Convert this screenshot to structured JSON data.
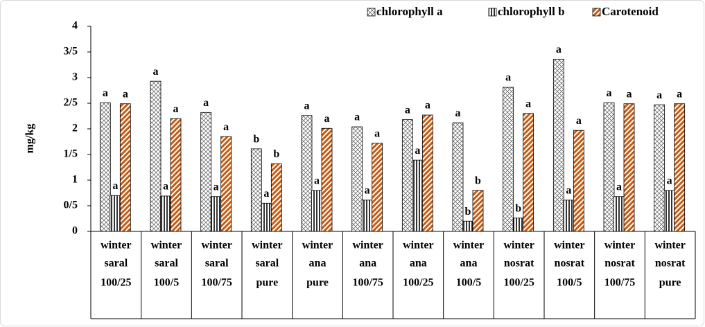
{
  "chart_data": {
    "type": "bar",
    "y_label": "mg/kg",
    "categories": [
      [
        "winter",
        "saral",
        "100/25"
      ],
      [
        "winter",
        "saral",
        "100/5"
      ],
      [
        "winter",
        "saral",
        "100/75"
      ],
      [
        "winter",
        "saral",
        "pure"
      ],
      [
        "winter",
        "ana",
        "pure"
      ],
      [
        "winter",
        "ana",
        "100/75"
      ],
      [
        "winter",
        "ana",
        "100/25"
      ],
      [
        "winter",
        "ana",
        "100/5"
      ],
      [
        "winter",
        "nosrat",
        "100/25"
      ],
      [
        "winter",
        "nosrat",
        "100/5"
      ],
      [
        "winter",
        "nosrat",
        "100/75"
      ],
      [
        "winter",
        "nosrat",
        "pure"
      ]
    ],
    "series": [
      {
        "name": "chlorophyll a",
        "color": "#000000",
        "values": [
          2.51,
          2.93,
          2.32,
          1.61,
          2.26,
          2.04,
          2.18,
          2.12,
          2.81,
          3.36,
          2.51,
          2.47
        ],
        "labels": [
          "a",
          "a",
          "a",
          "b",
          "a",
          "a",
          "a",
          "a",
          "a",
          "a",
          "a",
          "a"
        ]
      },
      {
        "name": "chlorophyll b",
        "color": "#000000",
        "values": [
          0.7,
          0.69,
          0.68,
          0.55,
          0.8,
          0.61,
          1.39,
          0.2,
          0.26,
          0.61,
          0.68,
          0.8
        ],
        "labels": [
          "a",
          "a",
          "a",
          "a",
          "a",
          "a",
          "a",
          "b",
          "b",
          "a",
          "a",
          "a"
        ]
      },
      {
        "name": "Carotenoid",
        "color": "#c55a11",
        "values": [
          2.49,
          2.2,
          1.85,
          1.32,
          2.01,
          1.72,
          2.27,
          0.8,
          2.3,
          1.97,
          2.49,
          2.49
        ],
        "labels": [
          "a",
          "a",
          "a",
          "b",
          "a",
          "a",
          "a",
          "b",
          "a",
          "a",
          "a",
          "a"
        ]
      }
    ],
    "ylim": [
      0,
      4
    ],
    "yticks": [
      0,
      {
        "value": 0.5,
        "label": "0/5"
      },
      1,
      {
        "value": 1.5,
        "label": "1/5"
      },
      2,
      {
        "value": 2.5,
        "label": "2/5"
      },
      3,
      {
        "value": 3.5,
        "label": "3/5"
      },
      4
    ],
    "legend": "top-right"
  }
}
